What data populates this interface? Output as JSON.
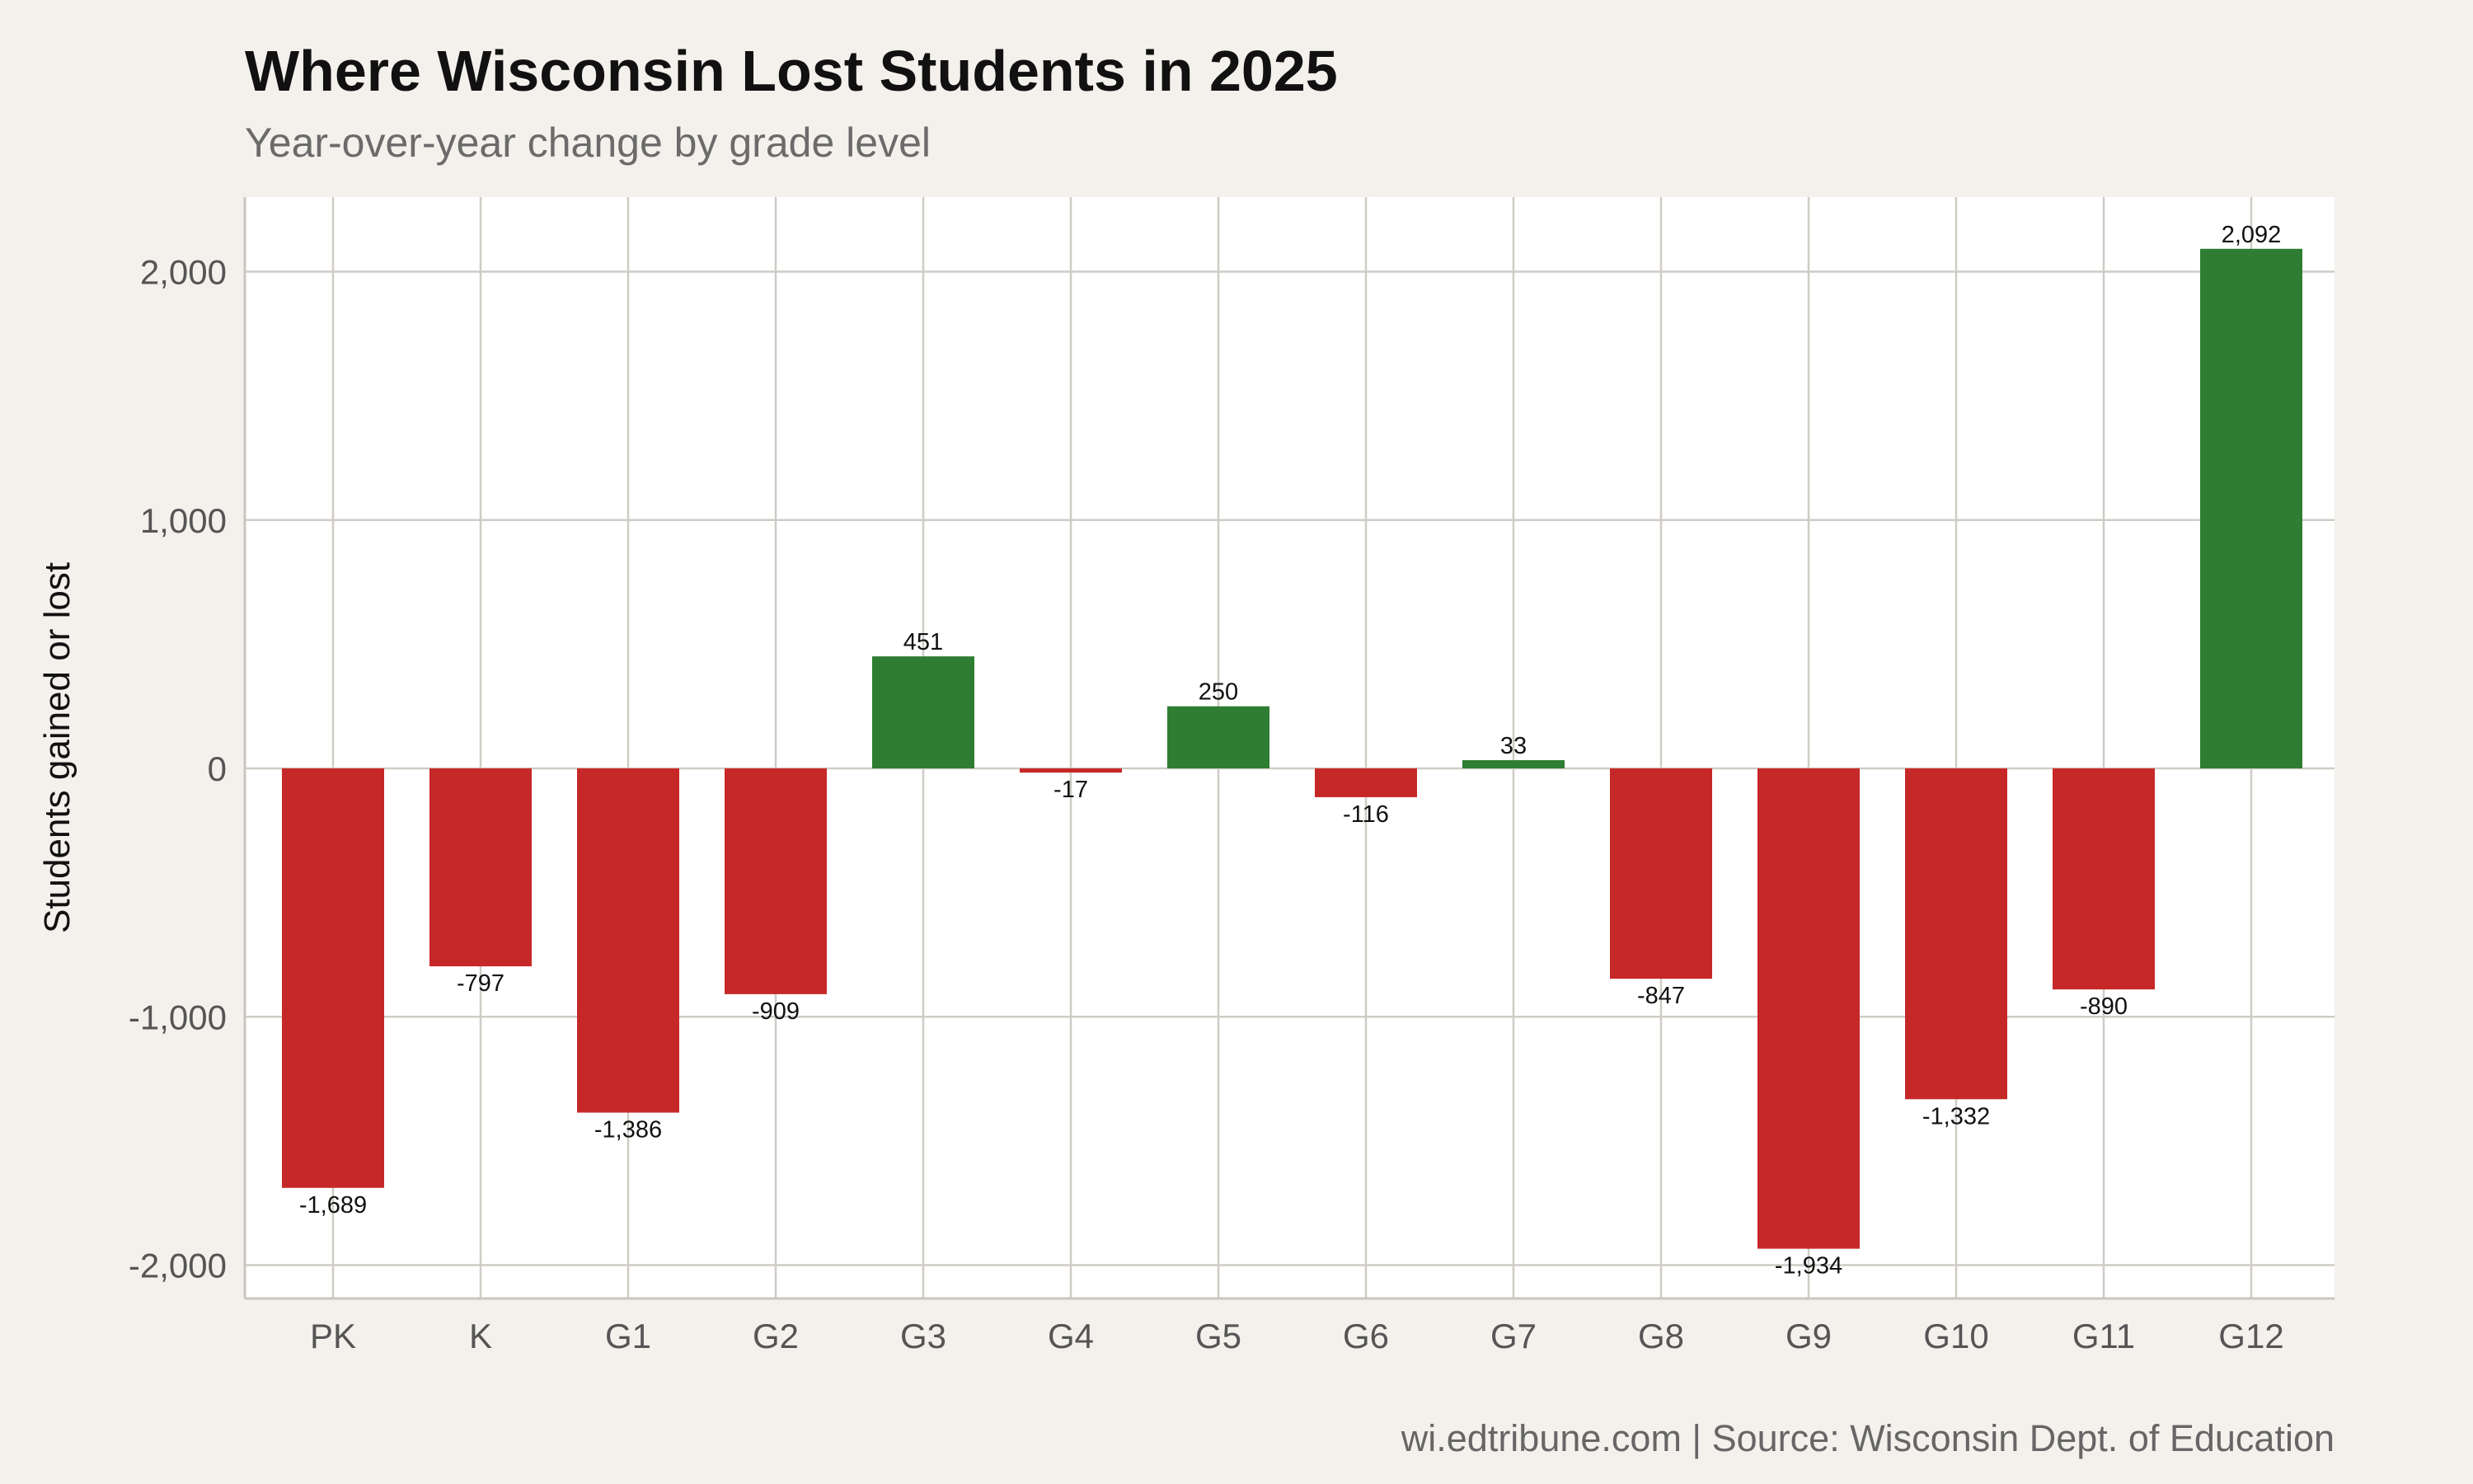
{
  "chart_data": {
    "type": "bar",
    "title": "Where Wisconsin Lost Students in 2025",
    "subtitle": "Year-over-year change by grade level",
    "xlabel": "",
    "ylabel": "Students gained or lost",
    "caption": "wi.edtribune.com | Source: Wisconsin Dept. of Education",
    "categories": [
      "PK",
      "K",
      "G1",
      "G2",
      "G3",
      "G4",
      "G5",
      "G6",
      "G7",
      "G8",
      "G9",
      "G10",
      "G11",
      "G12"
    ],
    "values": [
      -1689,
      -797,
      -1386,
      -909,
      451,
      -17,
      250,
      -116,
      33,
      -847,
      -1934,
      -1332,
      -890,
      2092
    ],
    "data_labels": [
      "-1,689",
      "-797",
      "-1,386",
      "-909",
      "451",
      "-17",
      "250",
      "-116",
      "33",
      "-847",
      "-1,934",
      "-1,332",
      "-890",
      "2,092"
    ],
    "ylim": [
      -2140,
      2290
    ],
    "yticks": [
      2000,
      1000,
      0,
      -1000,
      -2000
    ],
    "ytick_labels": [
      "2,000",
      "1,000",
      "0",
      "-1,000",
      "-2,000"
    ],
    "grid": true,
    "legend": "none",
    "colors": {
      "positive": "#2e7d32",
      "negative": "#c62828",
      "background": "#f4f1ec",
      "panel": "#ffffff"
    }
  }
}
